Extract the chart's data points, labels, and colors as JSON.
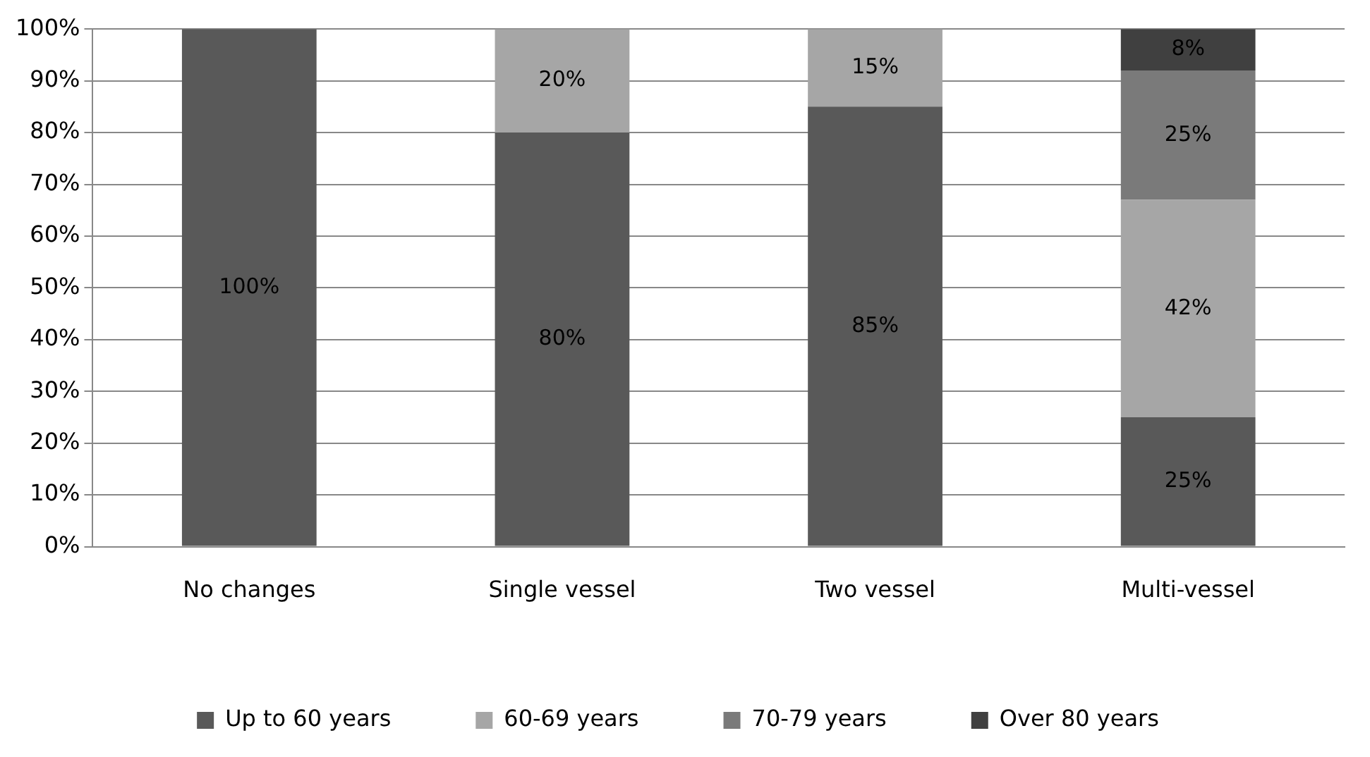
{
  "chart_data": {
    "type": "bar",
    "stacked": true,
    "categories": [
      "No changes",
      "Single vessel",
      "Two vessel",
      "Multi-vessel"
    ],
    "series": [
      {
        "name": "Up to 60 years",
        "color": "#595959",
        "values": [
          100,
          80,
          85,
          25
        ],
        "value_labels": [
          "100%",
          "80%",
          "85%",
          "25%"
        ]
      },
      {
        "name": "60-69 years",
        "color": "#a6a6a6",
        "values": [
          0,
          20,
          15,
          42
        ],
        "value_labels": [
          null,
          "20%",
          "15%",
          "42%"
        ]
      },
      {
        "name": "70-79 years",
        "color": "#7a7a7a",
        "values": [
          0,
          0,
          0,
          25
        ],
        "value_labels": [
          null,
          null,
          null,
          "25%"
        ]
      },
      {
        "name": "Over 80 years",
        "color": "#404040",
        "values": [
          0,
          0,
          0,
          8
        ],
        "value_labels": [
          null,
          null,
          null,
          "8%"
        ]
      }
    ],
    "ylim": [
      0,
      100
    ],
    "yticks": [
      {
        "value": 0,
        "label": "0%"
      },
      {
        "value": 10,
        "label": "10%"
      },
      {
        "value": 20,
        "label": "20%"
      },
      {
        "value": 30,
        "label": "30%"
      },
      {
        "value": 40,
        "label": "40%"
      },
      {
        "value": 50,
        "label": "50%"
      },
      {
        "value": 60,
        "label": "60%"
      },
      {
        "value": 70,
        "label": "70%"
      },
      {
        "value": 80,
        "label": "80%"
      },
      {
        "value": 90,
        "label": "90%"
      },
      {
        "value": 100,
        "label": "100%"
      }
    ],
    "grid": "y",
    "legend": "bottom"
  }
}
